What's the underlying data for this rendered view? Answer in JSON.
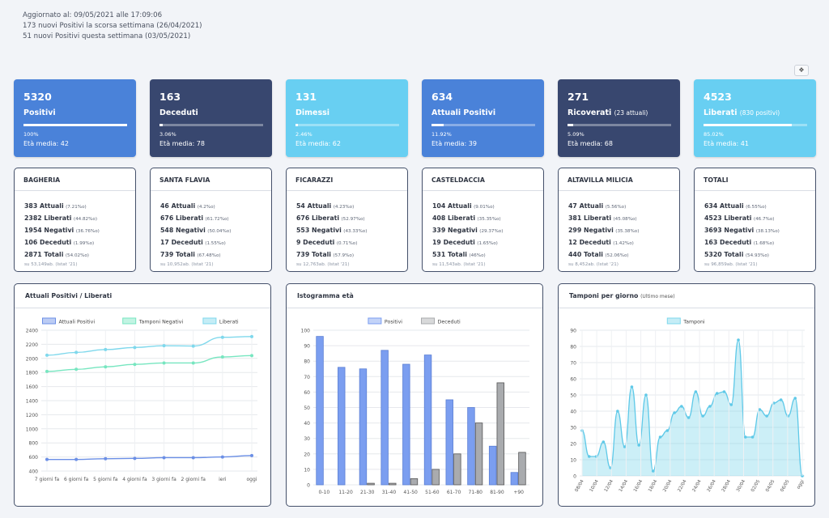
{
  "updates": [
    "Aggiornato al: 09/05/2021 alle 17:09:06",
    "173 nuovi Positivi la scorsa settimana (26/04/2021)",
    "51 nuovi Positivi questa settimana (03/05/2021)"
  ],
  "corner_button": "❖",
  "cards": [
    {
      "value": "5320",
      "label": "Positivi",
      "sub": "",
      "percent": "100%",
      "fill": 1.0,
      "age": "Età media: 42",
      "color": "#4a82d9"
    },
    {
      "value": "163",
      "label": "Deceduti",
      "sub": "",
      "percent": "3.06%",
      "fill": 0.0306,
      "age": "Età media: 78",
      "color": "#38476f"
    },
    {
      "value": "131",
      "label": "Dimessi",
      "sub": "",
      "percent": "2.46%",
      "fill": 0.0246,
      "age": "Età media: 62",
      "color": "#68cff2"
    },
    {
      "value": "634",
      "label": "Attuali Positivi",
      "sub": "",
      "percent": "11.92%",
      "fill": 0.1192,
      "age": "Età media: 39",
      "color": "#4a82d9"
    },
    {
      "value": "271",
      "label": "Ricoverati",
      "sub": "(23 attuali)",
      "percent": "5.09%",
      "fill": 0.0509,
      "age": "Età media: 68",
      "color": "#38476f"
    },
    {
      "value": "4523",
      "label": "Liberati",
      "sub": "(830 positivi)",
      "percent": "85.02%",
      "fill": 0.8502,
      "age": "Età media: 41",
      "color": "#68cff2"
    }
  ],
  "towns": [
    {
      "name": "BAGHERIA",
      "rows": [
        [
          "383 Attuali",
          "(7.21%o)"
        ],
        [
          "2382 Liberati",
          "(44.82%o)"
        ],
        [
          "1954 Negativi",
          "(36.76%o)"
        ],
        [
          "106 Deceduti",
          "(1.99%o)"
        ],
        [
          "2871 Totali",
          "(54.02%o)"
        ]
      ],
      "source": "su 53,149ab. (Istat '21)"
    },
    {
      "name": "SANTA FLAVIA",
      "rows": [
        [
          "46 Attuali",
          "(4.2%o)"
        ],
        [
          "676 Liberati",
          "(61.72%o)"
        ],
        [
          "548 Negativi",
          "(50.04%o)"
        ],
        [
          "17 Deceduti",
          "(1.55%o)"
        ],
        [
          "739 Totali",
          "(67.48%o)"
        ]
      ],
      "source": "su 10,952ab. (Istat '21)"
    },
    {
      "name": "FICARAZZI",
      "rows": [
        [
          "54 Attuali",
          "(4.23%o)"
        ],
        [
          "676 Liberati",
          "(52.97%o)"
        ],
        [
          "553 Negativi",
          "(43.33%o)"
        ],
        [
          "9 Deceduti",
          "(0.71%o)"
        ],
        [
          "739 Totali",
          "(57.9%o)"
        ]
      ],
      "source": "su 12,763ab. (Istat '21)"
    },
    {
      "name": "CASTELDACCIA",
      "rows": [
        [
          "104 Attuali",
          "(9.01%o)"
        ],
        [
          "408 Liberati",
          "(35.35%o)"
        ],
        [
          "339 Negativi",
          "(29.37%o)"
        ],
        [
          "19 Deceduti",
          "(1.65%o)"
        ],
        [
          "531 Totali",
          "(46%o)"
        ]
      ],
      "source": "su 11,543ab. (Istat '21)"
    },
    {
      "name": "ALTAVILLA MILICIA",
      "rows": [
        [
          "47 Attuali",
          "(5.56%o)"
        ],
        [
          "381 Liberati",
          "(45.08%o)"
        ],
        [
          "299 Negativi",
          "(35.38%o)"
        ],
        [
          "12 Deceduti",
          "(1.42%o)"
        ],
        [
          "440 Totali",
          "(52.06%o)"
        ]
      ],
      "source": "su 8,452ab. (Istat '21)"
    },
    {
      "name": "TOTALI",
      "rows": [
        [
          "634 Attuali",
          "(6.55%o)"
        ],
        [
          "4523 Liberati",
          "(46.7%o)"
        ],
        [
          "3693 Negativi",
          "(38.13%o)"
        ],
        [
          "163 Deceduti",
          "(1.68%o)"
        ],
        [
          "5320 Totali",
          "(54.93%o)"
        ]
      ],
      "source": "su 96,859ab. (Istat '21)"
    }
  ],
  "chart_titles": {
    "line": "Attuali Positivi / Liberati",
    "hist": "Istogramma età",
    "tamponi": "Tamponi per giorno",
    "tamponi_sub": "(Ultimo mese)"
  },
  "chart_data": [
    {
      "type": "line",
      "title": "Attuali Positivi / Liberati",
      "categories": [
        "7 giorni fa",
        "6 giorni fa",
        "5 giorni fa",
        "4 giorni fa",
        "3 giorni fa",
        "2 giorni fa",
        "ieri",
        "oggi"
      ],
      "ylim": [
        400,
        2400
      ],
      "yticks": [
        400,
        600,
        800,
        1000,
        1200,
        1400,
        1600,
        1800,
        2000,
        2200,
        2400
      ],
      "legend_position": "top",
      "series": [
        {
          "name": "Attuali Positivi",
          "color": "#6b8fe6",
          "values": [
            565,
            565,
            575,
            580,
            590,
            590,
            600,
            620
          ]
        },
        {
          "name": "Tamponi Negativi",
          "color": "#77e6c0",
          "values": [
            1815,
            1845,
            1880,
            1915,
            1935,
            1935,
            2020,
            2040
          ]
        },
        {
          "name": "Liberati",
          "color": "#7fd8ec",
          "values": [
            2045,
            2085,
            2125,
            2155,
            2180,
            2175,
            2300,
            2310
          ]
        }
      ]
    },
    {
      "type": "bar",
      "title": "Istogramma età",
      "categories": [
        "0-10",
        "11-20",
        "21-30",
        "31-40",
        "41-50",
        "51-60",
        "61-70",
        "71-80",
        "81-90",
        "+90"
      ],
      "ylim": [
        0,
        100
      ],
      "yticks": [
        0,
        10,
        20,
        30,
        40,
        50,
        60,
        70,
        80,
        90,
        100
      ],
      "legend_position": "top",
      "series": [
        {
          "name": "Positivi",
          "color": "#7b9ef0",
          "values": [
            96,
            76,
            75,
            87,
            78,
            84,
            55,
            50,
            25,
            8
          ]
        },
        {
          "name": "Deceduti",
          "color": "#a9abae",
          "values": [
            0,
            0,
            1,
            1,
            4,
            10,
            20,
            40,
            66,
            21
          ]
        }
      ]
    },
    {
      "type": "area",
      "title": "Tamponi per giorno",
      "subtitle": "(Ultimo mese)",
      "ylim": [
        0,
        90
      ],
      "yticks": [
        0,
        10,
        20,
        30,
        40,
        50,
        60,
        70,
        80,
        90
      ],
      "legend_position": "top",
      "x_labels": [
        "08/04",
        "10/04",
        "12/04",
        "14/04",
        "16/04",
        "18/04",
        "20/04",
        "22/04",
        "24/04",
        "26/04",
        "28/04",
        "30/04",
        "02/05",
        "04/05",
        "06/05",
        "oggi"
      ],
      "series": [
        {
          "name": "Tamponi",
          "color": "#7fd8ec",
          "values": [
            28,
            12,
            12,
            21,
            5,
            40,
            18,
            55,
            19,
            50,
            3,
            24,
            28,
            39,
            43,
            36,
            52,
            37,
            43,
            51,
            52,
            44,
            84,
            24,
            24,
            41,
            37,
            45,
            47,
            37,
            48,
            0
          ]
        }
      ]
    }
  ]
}
